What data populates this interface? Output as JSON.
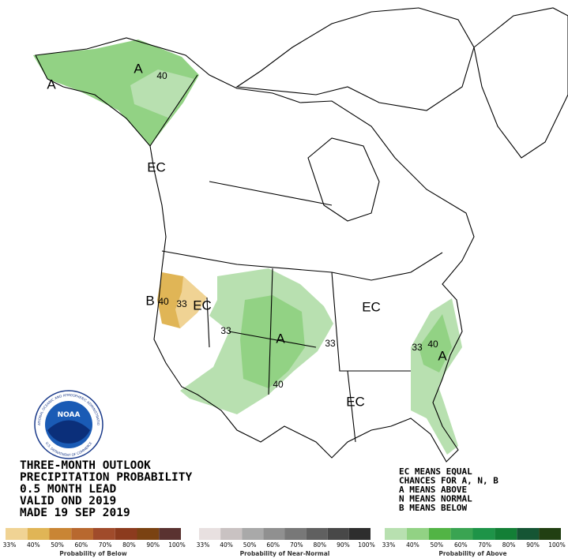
{
  "map_labels": [
    "A",
    "A",
    "40",
    "EC",
    "B",
    "40",
    "33",
    "EC",
    "33",
    "A",
    "33",
    "40",
    "EC",
    "33",
    "40",
    "A",
    "EC"
  ],
  "title_block": {
    "lines": [
      "THREE-MONTH OUTLOOK",
      "PRECIPITATION PROBABILITY",
      "0.5 MONTH LEAD",
      "VALID OND 2019",
      "MADE 19 SEP 2019"
    ]
  },
  "notes": {
    "lines": [
      "EC MEANS EQUAL",
      "CHANCES FOR A, N, B",
      "A MEANS ABOVE",
      "N MEANS NORMAL",
      "B MEANS BELOW"
    ]
  },
  "logo": {
    "name": "NOAA",
    "ring_top": "NATIONAL OCEANIC AND ATMOSPHERIC ADMINISTRATION",
    "ring_bottom": "U.S. DEPARTMENT OF COMMERCE"
  },
  "legend": [
    {
      "title": "Probability of Below",
      "colors": [
        "#f0d394",
        "#e0b556",
        "#c98534",
        "#b8682f",
        "#a04b2b",
        "#8c3b1e",
        "#7a4212",
        "#5a3230"
      ],
      "ticks": [
        "33%",
        "40%",
        "50%",
        "60%",
        "70%",
        "80%",
        "90%",
        "100%"
      ]
    },
    {
      "title": "Probability of Near-Normal",
      "colors": [
        "#e8e0e0",
        "#c9c2c2",
        "#a9a9a9",
        "#909090",
        "#787878",
        "#606060",
        "#484848",
        "#2e2e2e"
      ],
      "ticks": [
        "33%",
        "40%",
        "50%",
        "60%",
        "70%",
        "80%",
        "90%",
        "100%"
      ]
    },
    {
      "title": "Probability of Above",
      "colors": [
        "#b8e0b0",
        "#92d284",
        "#52b445",
        "#3aa452",
        "#1e9448",
        "#137f36",
        "#155534",
        "#213f12"
      ],
      "ticks": [
        "33%",
        "40%",
        "50%",
        "60%",
        "70%",
        "80%",
        "90%",
        "100%"
      ]
    }
  ]
}
